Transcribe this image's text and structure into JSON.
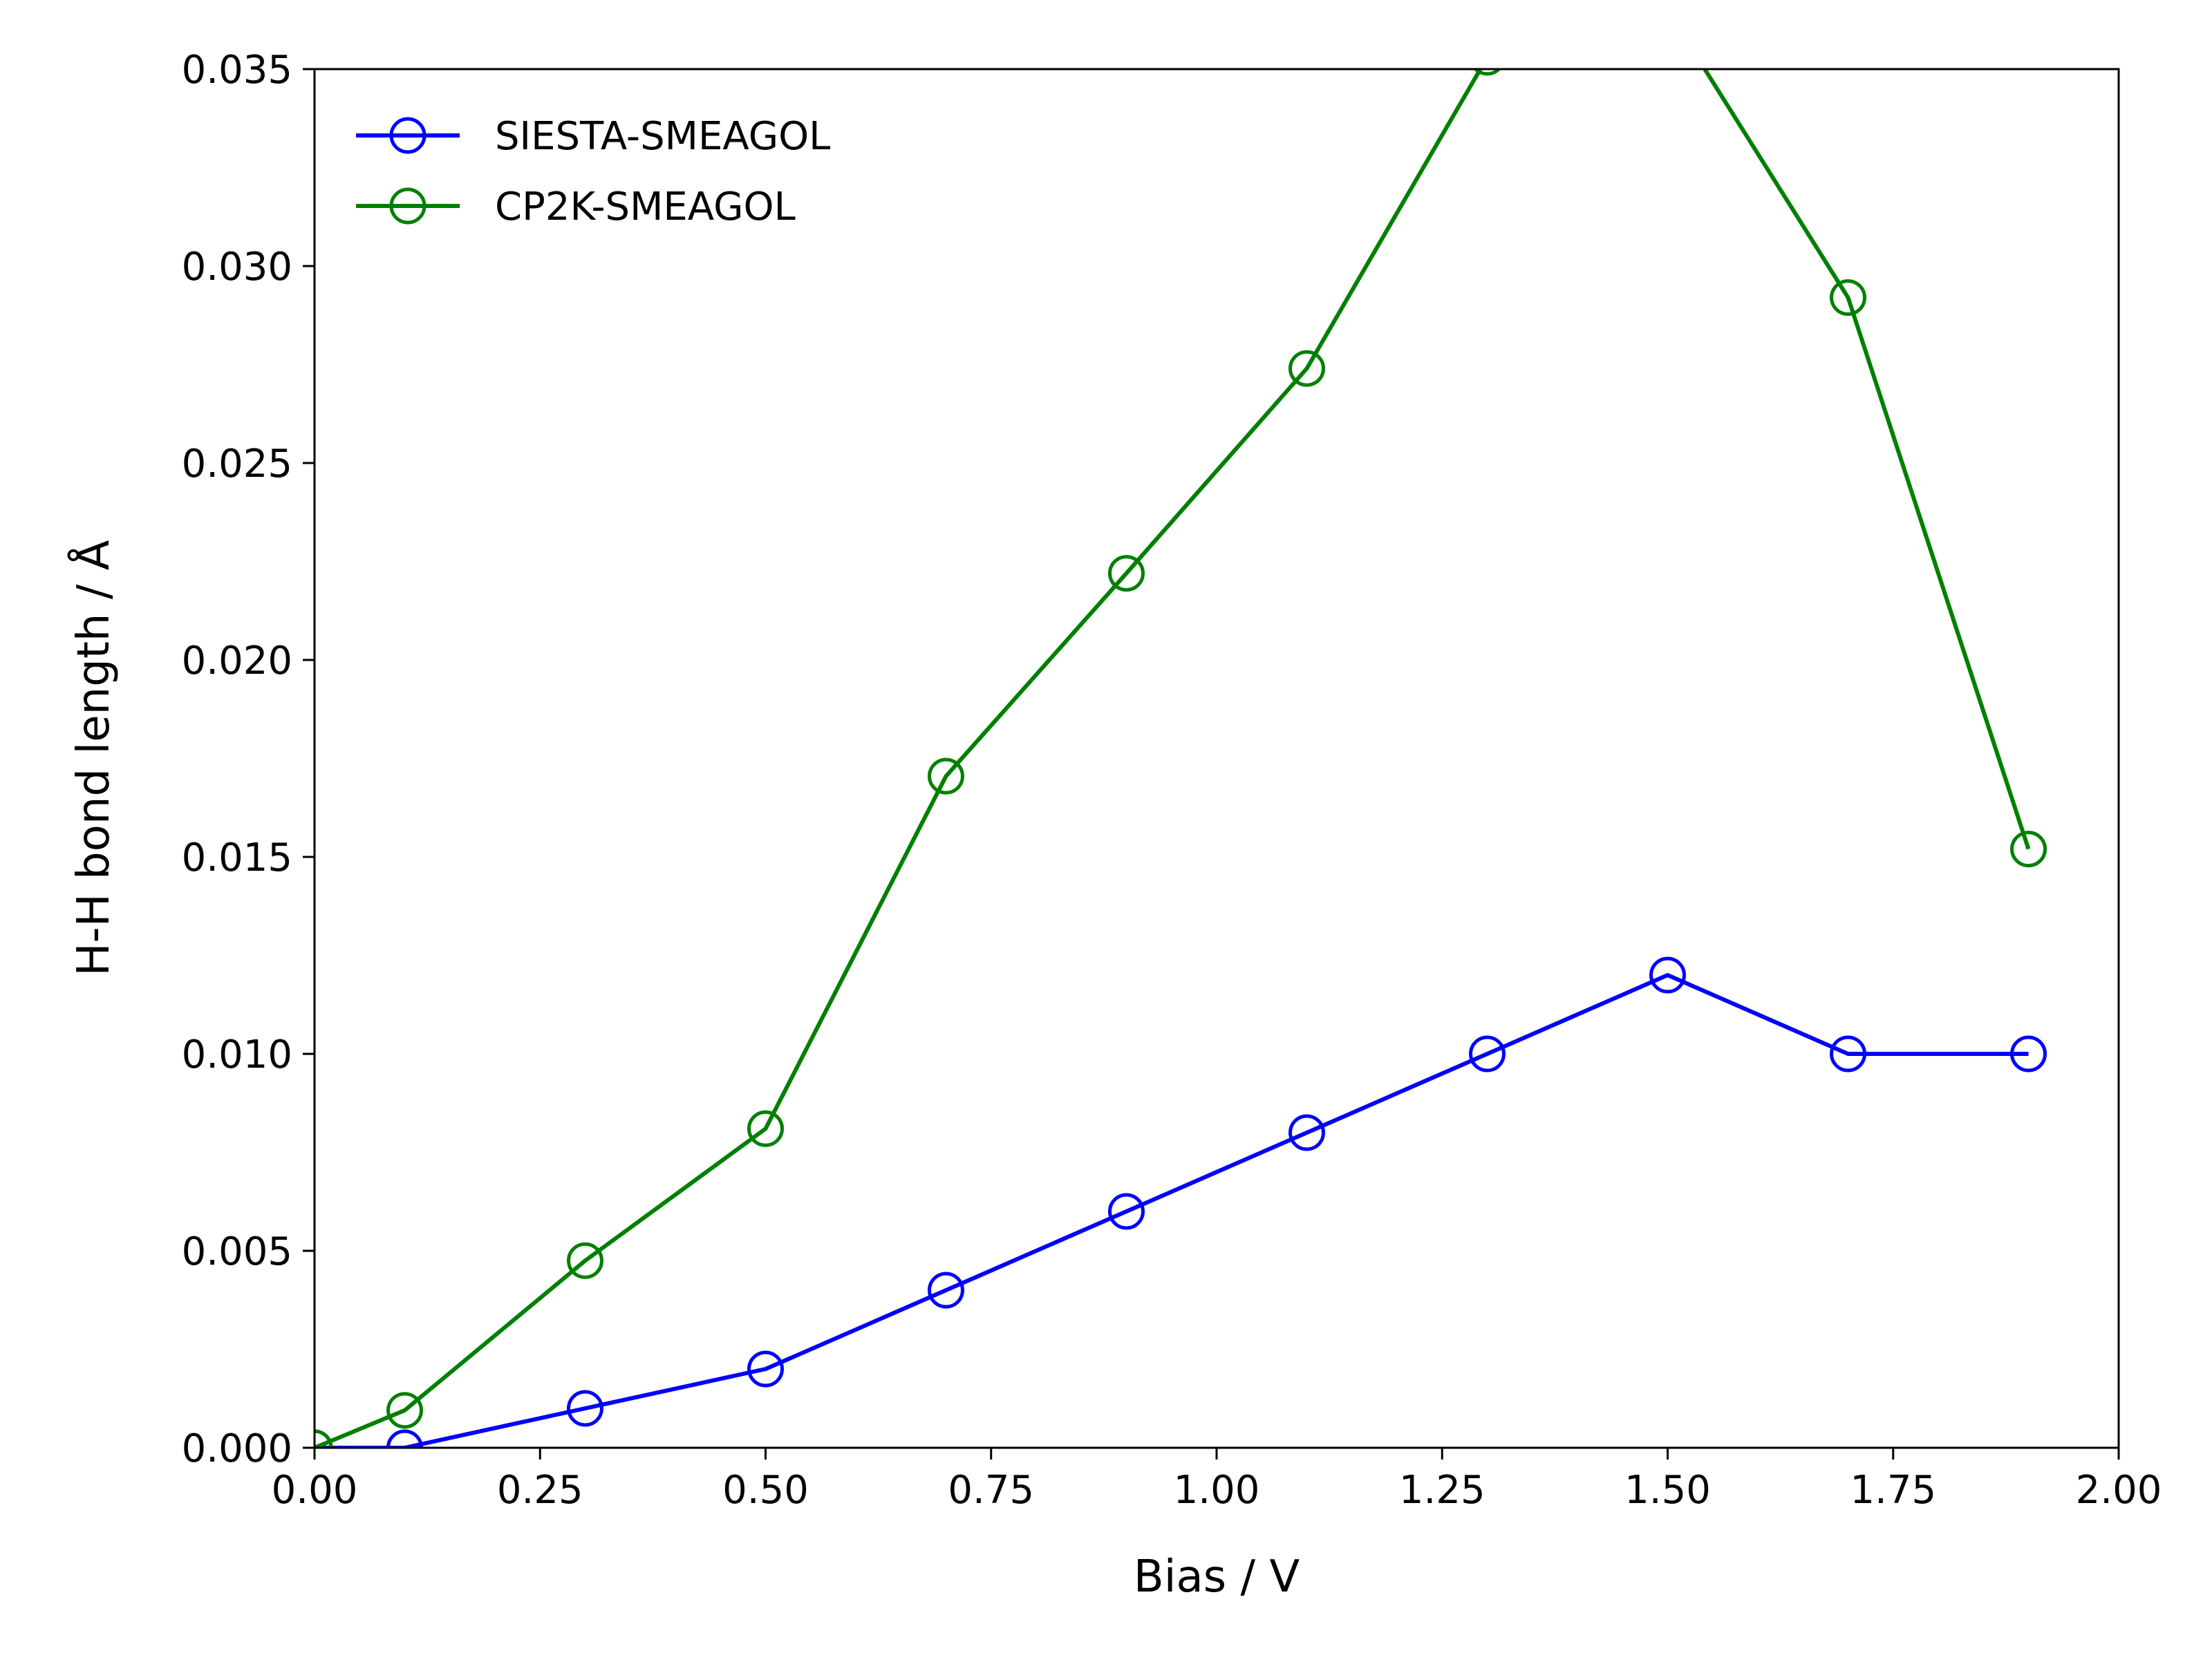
{
  "chart_data": {
    "type": "line",
    "xlabel": "Bias / V",
    "ylabel": "H-H bond length / Å",
    "xlim": [
      0,
      2.0
    ],
    "ylim": [
      0,
      0.035
    ],
    "x_ticks": [
      "0.00",
      "0.25",
      "0.50",
      "0.75",
      "1.00",
      "1.25",
      "1.50",
      "1.75",
      "2.00"
    ],
    "y_ticks": [
      "0.000",
      "0.005",
      "0.010",
      "0.015",
      "0.020",
      "0.025",
      "0.030",
      "0.035"
    ],
    "grid": false,
    "legend_position": "upper-left",
    "marker": "open-circle",
    "series": [
      {
        "name": "SIESTA-SMEAGOL",
        "color": "#0000ff",
        "x": [
          0.0,
          0.1,
          0.3,
          0.5,
          0.7,
          0.9,
          1.1,
          1.3,
          1.5,
          1.7,
          1.9
        ],
        "y": [
          0.0,
          0.0,
          0.001,
          0.002,
          0.004,
          0.006,
          0.008,
          0.01,
          0.012,
          0.01,
          0.01
        ]
      },
      {
        "name": "CP2K-SMEAGOL",
        "color": "#008000",
        "x": [
          0.0,
          0.1,
          0.3,
          0.5,
          0.7,
          0.9,
          1.1,
          1.3,
          1.5,
          1.7,
          1.9
        ],
        "y": [
          0.0,
          0.00095,
          0.00475,
          0.0081,
          0.01705,
          0.0222,
          0.0274,
          0.0353,
          0.0365,
          0.0292,
          0.0152
        ]
      }
    ]
  }
}
